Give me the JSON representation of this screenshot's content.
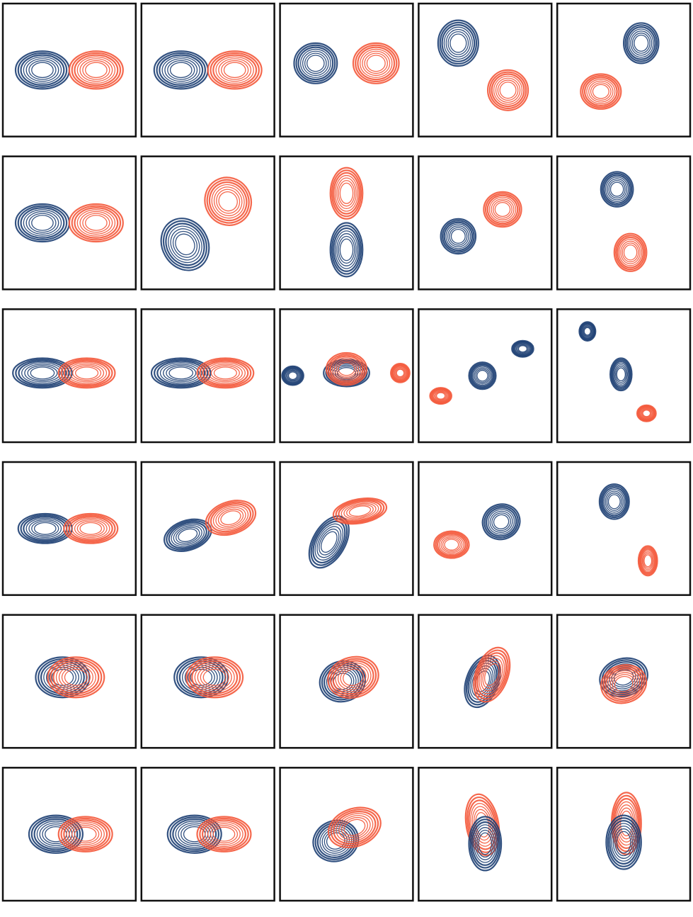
{
  "grid": {
    "rows": 6,
    "columns": 5
  },
  "colors": {
    "blue": "#1d3f73",
    "red": "#f4583a"
  }
}
